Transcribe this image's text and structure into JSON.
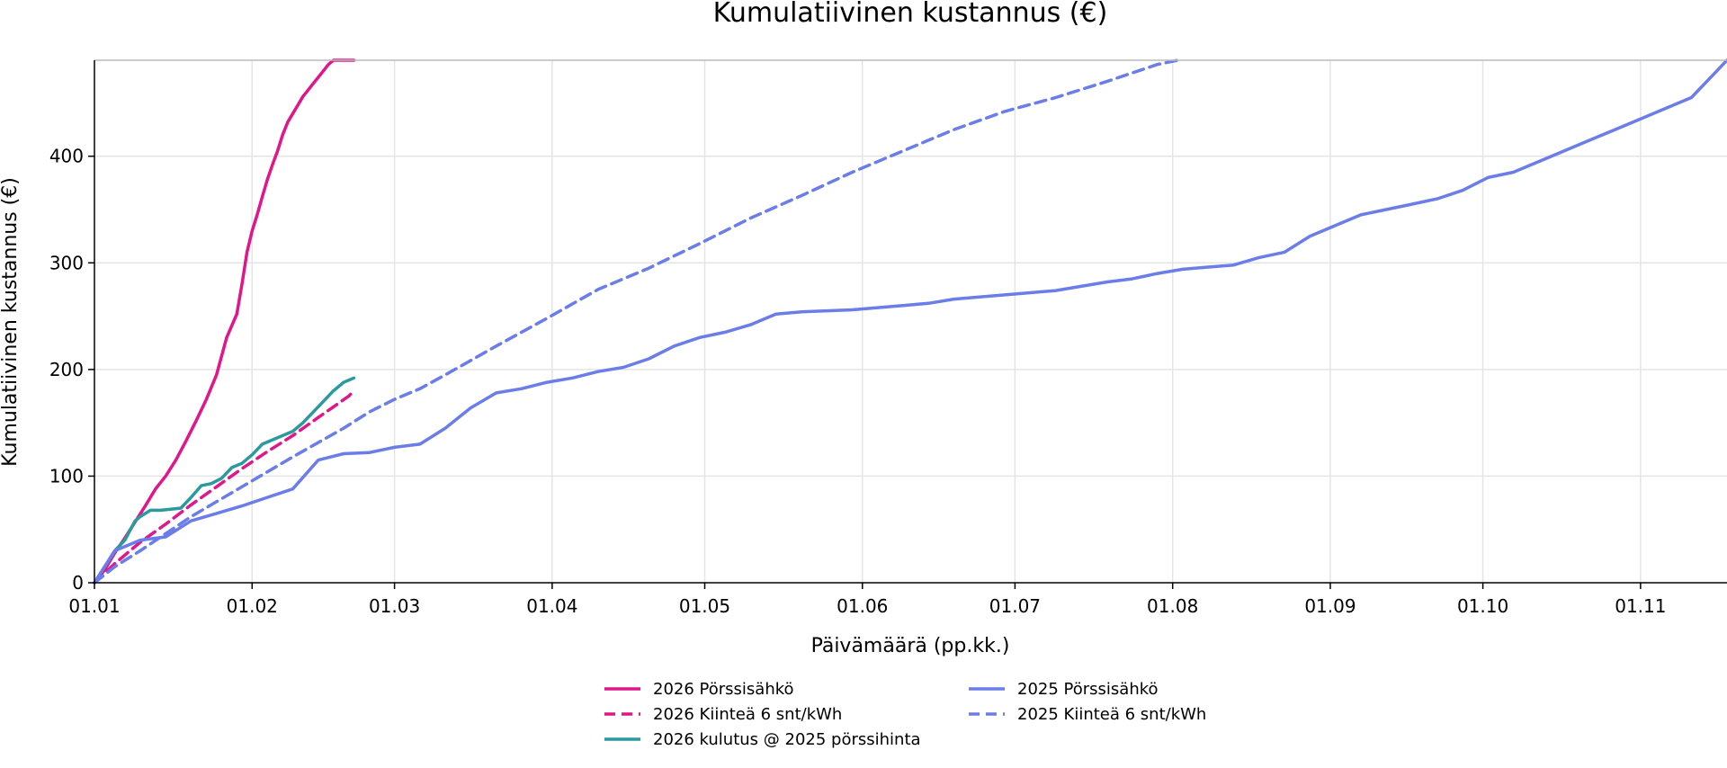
{
  "chart_data": {
    "type": "line",
    "title": "Kumulatiivinen kustannus (€)",
    "xlabel": "Päivämäärä (pp.kk.)",
    "ylabel": "Kumulatiivinen kustannus (€)",
    "x_unit": "day of year (1 = 01.01)",
    "xlim": [
      1,
      322
    ],
    "ylim": [
      0,
      490
    ],
    "grid": true,
    "legend_position": "bottom-center",
    "x_ticks": [
      {
        "x": 1,
        "label": "01.01"
      },
      {
        "x": 32,
        "label": "01.02"
      },
      {
        "x": 60,
        "label": "01.03"
      },
      {
        "x": 91,
        "label": "01.04"
      },
      {
        "x": 121,
        "label": "01.05"
      },
      {
        "x": 152,
        "label": "01.06"
      },
      {
        "x": 182,
        "label": "01.07"
      },
      {
        "x": 213,
        "label": "01.08"
      },
      {
        "x": 244,
        "label": "01.09"
      },
      {
        "x": 274,
        "label": "01.10"
      },
      {
        "x": 305,
        "label": "01.11"
      }
    ],
    "y_ticks": [
      {
        "y": 0,
        "label": "0"
      },
      {
        "y": 100,
        "label": "100"
      },
      {
        "y": 200,
        "label": "200"
      },
      {
        "y": 300,
        "label": "300"
      },
      {
        "y": 400,
        "label": "400"
      }
    ],
    "series": [
      {
        "name": "2026 Pörssisähkö",
        "color": "#e0168a",
        "dash": "solid",
        "x": [
          1,
          3,
          5,
          7,
          9,
          11,
          13,
          15,
          17,
          19,
          21,
          23,
          25,
          27,
          29,
          30,
          31,
          32,
          33,
          34,
          35,
          36,
          37,
          38,
          39,
          40,
          41,
          42,
          43,
          44,
          45,
          46,
          47,
          48,
          49,
          50,
          51,
          52
        ],
        "y": [
          0,
          12,
          28,
          42,
          57,
          72,
          88,
          100,
          115,
          133,
          152,
          172,
          195,
          230,
          252,
          280,
          310,
          330,
          345,
          362,
          378,
          392,
          405,
          420,
          432,
          440,
          448,
          456,
          462,
          468,
          474,
          480,
          486,
          490,
          490,
          490,
          490,
          490
        ]
      },
      {
        "name": "2026 Kiinteä 6 snt/kWh",
        "color": "#e0168a",
        "dash": "dashed",
        "x": [
          1,
          5,
          10,
          15,
          20,
          25,
          30,
          35,
          40,
          45,
          48,
          51,
          52
        ],
        "y": [
          0,
          18,
          38,
          55,
          73,
          90,
          107,
          123,
          138,
          155,
          165,
          175,
          180
        ]
      },
      {
        "name": "2026 kulutus @ 2025 pörssihinta",
        "color": "#2a9a9f",
        "dash": "solid",
        "x": [
          1,
          3,
          5,
          7,
          9,
          10,
          12,
          14,
          16,
          18,
          20,
          22,
          24,
          26,
          28,
          30,
          32,
          34,
          36,
          38,
          40,
          42,
          44,
          46,
          48,
          50,
          52
        ],
        "y": [
          0,
          15,
          30,
          40,
          58,
          62,
          68,
          68,
          69,
          70,
          80,
          91,
          93,
          98,
          108,
          112,
          120,
          130,
          134,
          138,
          142,
          150,
          160,
          170,
          180,
          188,
          192
        ]
      },
      {
        "name": "2025 Pörssisähkö",
        "color": "#6a7de8",
        "dash": "solid",
        "x": [
          1,
          5,
          10,
          15,
          20,
          25,
          30,
          35,
          40,
          45,
          50,
          55,
          60,
          65,
          70,
          75,
          80,
          85,
          90,
          95,
          100,
          105,
          110,
          115,
          120,
          125,
          130,
          135,
          140,
          145,
          150,
          155,
          160,
          165,
          170,
          175,
          180,
          185,
          190,
          195,
          200,
          205,
          210,
          215,
          220,
          225,
          230,
          235,
          240,
          245,
          250,
          255,
          260,
          265,
          270,
          275,
          280,
          285,
          290,
          295,
          300,
          305,
          310,
          315,
          318,
          322
        ],
        "y": [
          0,
          30,
          40,
          43,
          58,
          65,
          72,
          80,
          88,
          115,
          121,
          122,
          127,
          130,
          145,
          164,
          178,
          182,
          188,
          192,
          198,
          202,
          210,
          222,
          230,
          235,
          242,
          252,
          254,
          255,
          256,
          258,
          260,
          262,
          266,
          268,
          270,
          272,
          274,
          278,
          282,
          285,
          290,
          294,
          296,
          298,
          305,
          310,
          325,
          335,
          345,
          350,
          355,
          360,
          368,
          380,
          385,
          395,
          405,
          415,
          425,
          435,
          445,
          455,
          470,
          490
        ]
      },
      {
        "name": "2025 Kiinteä 6 snt/kWh",
        "color": "#6a7de8",
        "dash": "dashed",
        "x": [
          1,
          5,
          10,
          20,
          30,
          40,
          50,
          55,
          60,
          65,
          70,
          80,
          90,
          100,
          110,
          120,
          130,
          140,
          150,
          160,
          170,
          180,
          190,
          200,
          210,
          214
        ],
        "y": [
          0,
          15,
          30,
          62,
          90,
          118,
          145,
          160,
          172,
          182,
          195,
          222,
          248,
          275,
          295,
          318,
          342,
          363,
          385,
          405,
          425,
          442,
          455,
          470,
          486,
          490
        ]
      }
    ]
  }
}
